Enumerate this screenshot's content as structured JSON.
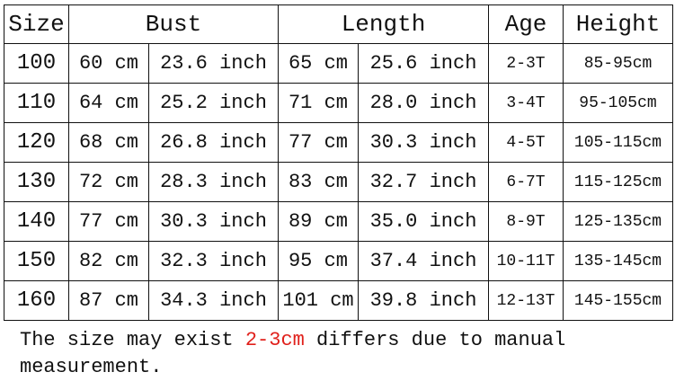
{
  "headers": {
    "size": "Size",
    "bust": "Bust",
    "length": "Length",
    "age": "Age",
    "height": "Height"
  },
  "rows": [
    {
      "size": "100",
      "bust_cm": "60 cm",
      "bust_in": "23.6 inch",
      "length_cm": "65 cm",
      "length_in": "25.6 inch",
      "age": "2-3T",
      "height": "85-95cm"
    },
    {
      "size": "110",
      "bust_cm": "64 cm",
      "bust_in": "25.2 inch",
      "length_cm": "71 cm",
      "length_in": "28.0 inch",
      "age": "3-4T",
      "height": "95-105cm"
    },
    {
      "size": "120",
      "bust_cm": "68 cm",
      "bust_in": "26.8 inch",
      "length_cm": "77 cm",
      "length_in": "30.3 inch",
      "age": "4-5T",
      "height": "105-115cm"
    },
    {
      "size": "130",
      "bust_cm": "72 cm",
      "bust_in": "28.3 inch",
      "length_cm": "83 cm",
      "length_in": "32.7 inch",
      "age": "6-7T",
      "height": "115-125cm"
    },
    {
      "size": "140",
      "bust_cm": "77 cm",
      "bust_in": "30.3 inch",
      "length_cm": "89 cm",
      "length_in": "35.0 inch",
      "age": "8-9T",
      "height": "125-135cm"
    },
    {
      "size": "150",
      "bust_cm": "82 cm",
      "bust_in": "32.3 inch",
      "length_cm": "95 cm",
      "length_in": "37.4 inch",
      "age": "10-11T",
      "height": "135-145cm"
    },
    {
      "size": "160",
      "bust_cm": "87 cm",
      "bust_in": "34.3 inch",
      "length_cm": "101 cm",
      "length_in": "39.8 inch",
      "age": "12-13T",
      "height": "145-155cm"
    }
  ],
  "note": {
    "before": "The size may exist ",
    "highlight": "2-3cm",
    "after": " differs due to manual measurement.",
    "highlight_color": "#e0201b"
  }
}
